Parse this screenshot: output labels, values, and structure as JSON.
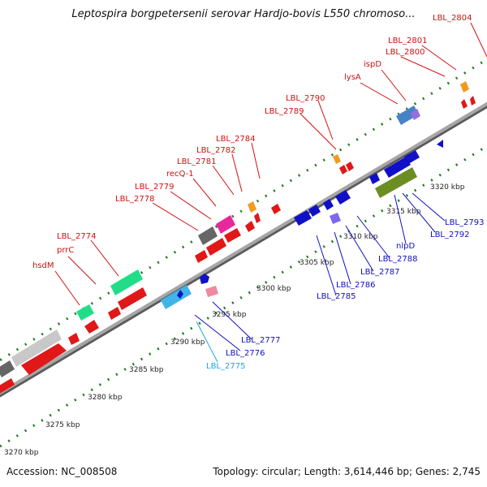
{
  "title": "Leptospira borgpetersenii serovar Hardjo-bovis L550 chromoso...",
  "footer": {
    "accession": "Accession: NC_008508",
    "summary": "Topology: circular; Length: 3,614,446 bp; Genes: 2,745"
  },
  "colors": {
    "backbone": "#8c8c8c",
    "tick": "#1b7a1b",
    "forward_label": "#d01010",
    "reverse_label": "#1010c0",
    "highlight_label": "#18a8e0"
  },
  "scale": {
    "unit": "kbp",
    "ticks": [
      "3270 kbp",
      "3275 kbp",
      "3280 kbp",
      "3285 kbp",
      "3290 kbp",
      "3295 kbp",
      "3300 kbp",
      "3305 kbp",
      "3310 kbp",
      "3315 kbp",
      "3320 kbp"
    ]
  },
  "forward_labels": [
    "hsdM",
    "prrC",
    "LBL_2774",
    "LBL_2778",
    "LBL_2779",
    "recQ-1",
    "LBL_2781",
    "LBL_2782",
    "LBL_2784",
    "LBL_2789",
    "LBL_2790",
    "lysA",
    "ispD",
    "LBL_2800",
    "LBL_2801",
    "LBL_2804"
  ],
  "reverse_labels": [
    "LBL_2775",
    "LBL_2776",
    "LBL_2777",
    "LBL_2785",
    "LBL_2786",
    "LBL_2787",
    "LBL_2788",
    "nlpD",
    "LBL_2792",
    "LBL_2793"
  ]
}
